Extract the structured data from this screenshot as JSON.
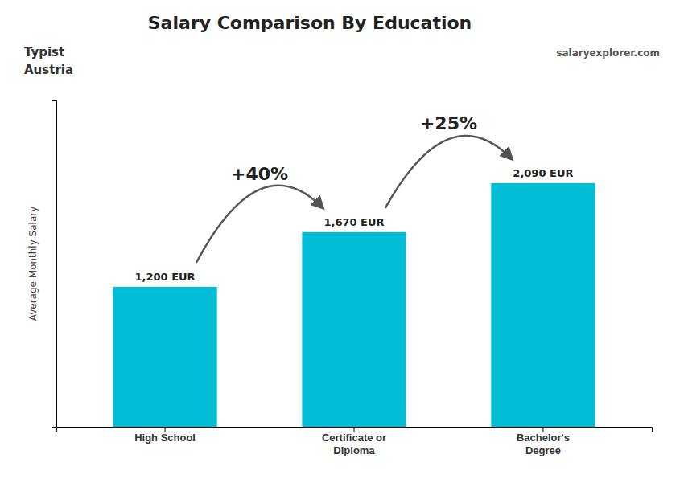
{
  "chart_data": {
    "type": "bar",
    "title": "Salary Comparison By Education",
    "subtitle": [
      "Typist",
      "Austria"
    ],
    "watermark": [
      "salary",
      "explorer",
      ".com"
    ],
    "y_label": "Average Monthly Salary",
    "categories": [
      "High School",
      "Certificate or\nDiploma",
      "Bachelor's\nDegree"
    ],
    "values": [
      1200,
      1670,
      2090
    ],
    "value_labels": [
      "1,200 EUR",
      "1,670 EUR",
      "2,090 EUR"
    ],
    "data_labels": true,
    "annotations": [
      "+40%",
      "+25%"
    ],
    "color": "#00bcd4",
    "ylim": [
      0,
      2800
    ],
    "tick_labels": false,
    "grid": false
  }
}
